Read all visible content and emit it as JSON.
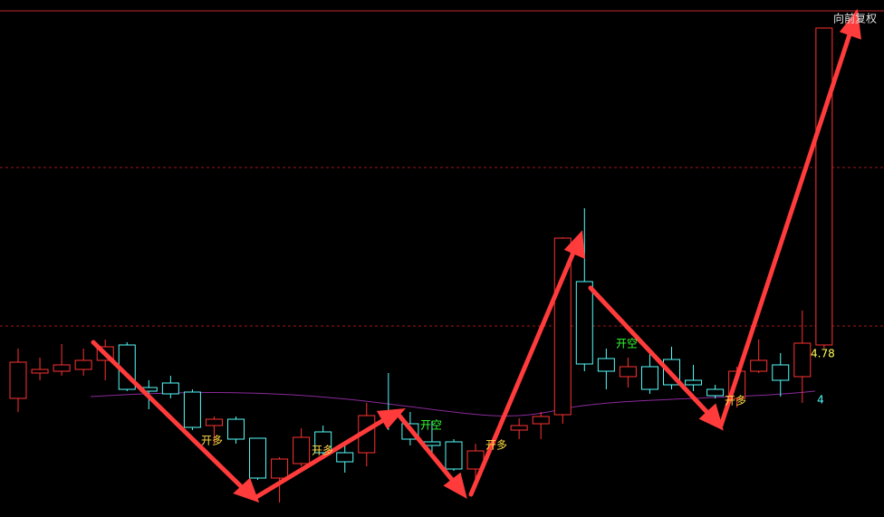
{
  "chart_data": {
    "type": "candlestick",
    "corner_label": "向前复权",
    "price_marker": {
      "value": 4.78,
      "label": "4.78"
    },
    "indicator_label": "4",
    "signals": [
      "开多",
      "开多",
      "开空",
      "开多",
      "开空",
      "开多"
    ],
    "up_color": "#ff3232",
    "down_color": "#54fcfc",
    "ylim": [
      3.88,
      6.675
    ],
    "open": [
      4.535,
      4.675,
      4.685,
      4.695,
      4.745,
      4.83,
      4.595,
      4.62,
      4.57,
      4.385,
      4.42,
      4.315,
      4.095,
      4.175,
      4.35,
      4.235,
      4.235,
      4.445,
      4.395,
      4.295,
      4.295,
      4.145,
      null,
      4.36,
      4.395,
      4.445,
      5.18,
      4.755,
      4.655,
      4.71,
      4.75,
      4.635,
      4.585,
      4.535,
      4.685,
      4.72,
      4.655,
      4.83
    ],
    "high": [
      4.81,
      4.76,
      4.835,
      4.81,
      4.86,
      4.845,
      4.635,
      4.66,
      4.585,
      4.435,
      4.435,
      4.315,
      4.21,
      4.37,
      4.385,
      4.285,
      4.51,
      4.675,
      4.46,
      4.41,
      4.31,
      4.285,
      null,
      4.425,
      4.46,
      5.425,
      5.585,
      4.81,
      4.76,
      4.81,
      4.82,
      4.72,
      4.61,
      4.71,
      4.86,
      4.785,
      5.02,
      6.58
    ],
    "low": [
      4.46,
      4.635,
      4.66,
      4.66,
      4.635,
      4.575,
      4.475,
      4.535,
      4.36,
      4.285,
      4.285,
      4.085,
      3.96,
      4.16,
      4.22,
      4.125,
      4.16,
      4.36,
      4.275,
      4.235,
      4.135,
      4.085,
      null,
      4.31,
      4.31,
      4.395,
      4.685,
      4.585,
      4.595,
      4.56,
      4.585,
      4.575,
      4.535,
      4.485,
      4.675,
      4.545,
      4.51,
      4.81
    ],
    "close": [
      4.735,
      4.695,
      4.72,
      4.745,
      4.82,
      4.585,
      4.575,
      4.56,
      4.375,
      4.42,
      4.31,
      4.095,
      4.2,
      4.32,
      4.235,
      4.185,
      4.44,
      4.435,
      4.31,
      4.275,
      4.145,
      4.245,
      null,
      4.385,
      4.435,
      5.42,
      4.725,
      4.685,
      4.71,
      4.585,
      4.61,
      4.61,
      4.55,
      4.685,
      4.745,
      4.635,
      4.84,
      6.58
    ]
  }
}
